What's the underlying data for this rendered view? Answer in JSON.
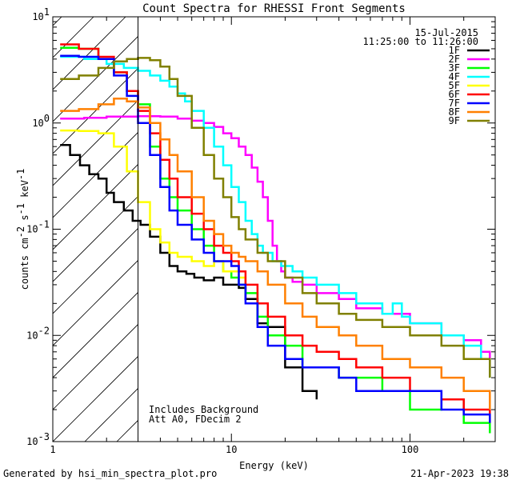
{
  "chart_data": {
    "type": "line",
    "title": "Count Spectra for RHESSI Front Segments",
    "xlabel": "Energy (keV)",
    "ylabel": {
      "pre": "counts cm",
      "exp1": "-2",
      "mid": " s",
      "exp2": "-1",
      "post": " keV",
      "exp3": "-1"
    },
    "xscale": "log",
    "yscale": "log",
    "xlim": [
      1,
      300
    ],
    "ylim": [
      0.001,
      10
    ],
    "x_ticks": [
      {
        "v": 1,
        "label": "1"
      },
      {
        "v": 10,
        "label": "10"
      },
      {
        "v": 100,
        "label": "100"
      }
    ],
    "y_ticks": [
      {
        "v": 10,
        "base": "10",
        "exp": "1"
      },
      {
        "v": 1,
        "base": "10",
        "exp": "0"
      },
      {
        "v": 0.1,
        "base": "10",
        "exp": "-1"
      },
      {
        "v": 0.01,
        "base": "10",
        "exp": "-2"
      },
      {
        "v": 0.001,
        "base": "10",
        "exp": "-3"
      }
    ],
    "hatch_region": {
      "x_from": 1,
      "x_to": 3
    },
    "date": "15-Jul-2015",
    "time_range": "11:25:00 to 11:26:00",
    "annotations": [
      "Includes Background",
      "Att A0, FDecim 2"
    ],
    "legend_position": "top-right",
    "series": [
      {
        "name": "1F",
        "color": "#000000",
        "x": [
          1.1,
          1.25,
          1.42,
          1.6,
          1.8,
          2.0,
          2.2,
          2.5,
          2.8,
          3.1,
          3.5,
          4.0,
          4.5,
          5.0,
          5.6,
          6.2,
          7.0,
          8.0,
          9.0,
          10,
          11,
          12,
          14,
          16,
          20,
          25,
          30
        ],
        "y": [
          0.62,
          0.5,
          0.4,
          0.33,
          0.3,
          0.22,
          0.18,
          0.15,
          0.12,
          0.11,
          0.085,
          0.06,
          0.045,
          0.04,
          0.038,
          0.035,
          0.033,
          0.035,
          0.03,
          0.03,
          0.028,
          0.022,
          0.013,
          0.012,
          0.005,
          0.003,
          0.0025
        ]
      },
      {
        "name": "2F",
        "color": "#ff00ff",
        "x": [
          1.1,
          1.5,
          2,
          2.5,
          3,
          4,
          5,
          6,
          7,
          8,
          9,
          10,
          11,
          12,
          13,
          14,
          15,
          16,
          17,
          18,
          19,
          20,
          22,
          25,
          30,
          40,
          50,
          70,
          100,
          150,
          200,
          250,
          280
        ],
        "y": [
          1.1,
          1.12,
          1.15,
          1.15,
          1.16,
          1.15,
          1.1,
          1.05,
          1.0,
          0.92,
          0.8,
          0.72,
          0.6,
          0.5,
          0.38,
          0.28,
          0.2,
          0.12,
          0.07,
          0.05,
          0.04,
          0.035,
          0.032,
          0.03,
          0.025,
          0.022,
          0.018,
          0.016,
          0.013,
          0.01,
          0.009,
          0.007,
          0.005
        ]
      },
      {
        "name": "3F",
        "color": "#00ff00",
        "x": [
          1.1,
          1.4,
          1.8,
          2.2,
          2.6,
          3.0,
          3.5,
          4.0,
          4.5,
          5.0,
          6,
          7,
          8,
          9,
          10,
          11,
          12,
          14,
          16,
          20,
          25,
          30,
          40,
          50,
          70,
          100,
          150,
          200,
          280
        ],
        "y": [
          5.1,
          5.0,
          4.0,
          3.0,
          2.0,
          1.5,
          0.6,
          0.3,
          0.2,
          0.15,
          0.1,
          0.07,
          0.05,
          0.04,
          0.035,
          0.03,
          0.025,
          0.015,
          0.01,
          0.008,
          0.005,
          0.005,
          0.004,
          0.004,
          0.003,
          0.002,
          0.0025,
          0.0015,
          0.0012
        ]
      },
      {
        "name": "4F",
        "color": "#00ffff",
        "x": [
          1.1,
          1.5,
          2,
          2.5,
          3,
          3.5,
          4,
          4.5,
          5,
          5.5,
          6,
          7,
          8,
          9,
          10,
          11,
          12,
          13,
          14,
          15,
          17,
          19,
          22,
          25,
          30,
          40,
          50,
          60,
          70,
          80,
          90,
          100,
          150,
          200,
          250,
          280
        ],
        "y": [
          4.2,
          4.0,
          3.6,
          3.3,
          3.1,
          2.8,
          2.5,
          2.2,
          1.9,
          1.6,
          1.3,
          0.9,
          0.6,
          0.4,
          0.25,
          0.18,
          0.12,
          0.09,
          0.07,
          0.06,
          0.05,
          0.045,
          0.04,
          0.035,
          0.03,
          0.025,
          0.02,
          0.02,
          0.016,
          0.02,
          0.015,
          0.013,
          0.01,
          0.008,
          0.006,
          0.004
        ]
      },
      {
        "name": "5F",
        "color": "#ffff00",
        "x": [
          1.1,
          1.4,
          1.8,
          2.2,
          2.6,
          3.0,
          3.5,
          4.0,
          4.5,
          5.0,
          6,
          7,
          8,
          9,
          10,
          11,
          12
        ],
        "y": [
          0.85,
          0.84,
          0.8,
          0.6,
          0.35,
          0.18,
          0.1,
          0.075,
          0.06,
          0.055,
          0.05,
          0.045,
          0.05,
          0.04,
          0.04,
          0.035,
          0.03
        ]
      },
      {
        "name": "6F",
        "color": "#ff0000",
        "x": [
          1.1,
          1.4,
          1.8,
          2.2,
          2.6,
          3.0,
          3.5,
          4.0,
          4.5,
          5.0,
          6,
          7,
          8,
          9,
          10,
          11,
          12,
          14,
          16,
          20,
          25,
          30,
          40,
          50,
          70,
          100,
          150,
          200,
          280
        ],
        "y": [
          5.5,
          5.0,
          4.2,
          3.0,
          2.0,
          1.3,
          0.8,
          0.45,
          0.3,
          0.2,
          0.14,
          0.1,
          0.07,
          0.06,
          0.05,
          0.04,
          0.03,
          0.02,
          0.015,
          0.01,
          0.008,
          0.007,
          0.006,
          0.005,
          0.004,
          0.003,
          0.0025,
          0.002,
          0.0015
        ]
      },
      {
        "name": "7F",
        "color": "#0000ff",
        "x": [
          1.1,
          1.4,
          1.8,
          2.2,
          2.6,
          3.0,
          3.5,
          4.0,
          4.5,
          5.0,
          6,
          7,
          8,
          9,
          10,
          11,
          12,
          14,
          16,
          20,
          25,
          30,
          40,
          50,
          70,
          100,
          150,
          200,
          280
        ],
        "y": [
          4.3,
          4.2,
          4.0,
          2.8,
          1.8,
          1.0,
          0.5,
          0.25,
          0.15,
          0.11,
          0.08,
          0.06,
          0.05,
          0.05,
          0.045,
          0.03,
          0.02,
          0.012,
          0.008,
          0.006,
          0.005,
          0.005,
          0.004,
          0.003,
          0.003,
          0.003,
          0.002,
          0.0018,
          0.0015
        ]
      },
      {
        "name": "8F",
        "color": "#ff8000",
        "x": [
          1.1,
          1.4,
          1.8,
          2.2,
          2.6,
          3.0,
          3.5,
          4.0,
          4.5,
          5.0,
          6,
          7,
          8,
          9,
          10,
          11,
          12,
          14,
          16,
          20,
          25,
          30,
          40,
          50,
          70,
          100,
          150,
          200,
          280
        ],
        "y": [
          1.3,
          1.35,
          1.5,
          1.7,
          1.6,
          1.4,
          1.0,
          0.7,
          0.5,
          0.35,
          0.2,
          0.12,
          0.09,
          0.07,
          0.06,
          0.055,
          0.05,
          0.04,
          0.03,
          0.02,
          0.015,
          0.012,
          0.01,
          0.008,
          0.006,
          0.005,
          0.004,
          0.003,
          0.002
        ]
      },
      {
        "name": "9F",
        "color": "#808000",
        "x": [
          1.1,
          1.4,
          1.8,
          2.2,
          2.6,
          3.0,
          3.5,
          4.0,
          4.5,
          5.0,
          6,
          7,
          8,
          9,
          10,
          11,
          12,
          14,
          16,
          20,
          25,
          30,
          40,
          50,
          70,
          100,
          150,
          200,
          280
        ],
        "y": [
          2.6,
          2.8,
          3.3,
          3.8,
          4.0,
          4.1,
          3.9,
          3.4,
          2.6,
          1.8,
          0.9,
          0.5,
          0.3,
          0.2,
          0.13,
          0.1,
          0.08,
          0.06,
          0.05,
          0.035,
          0.025,
          0.02,
          0.016,
          0.014,
          0.012,
          0.01,
          0.008,
          0.006,
          0.004
        ]
      }
    ]
  },
  "footer": {
    "left": "Generated by hsi_min_spectra_plot.pro",
    "right": "21-Apr-2023 19:38"
  }
}
